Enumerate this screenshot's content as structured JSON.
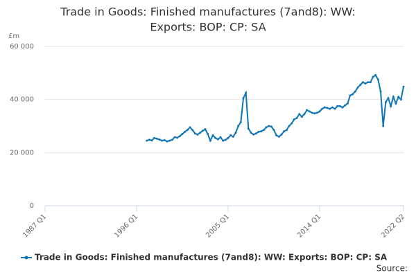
{
  "chart_data": {
    "type": "line",
    "title": [
      "Trade in Goods: Finished manufactures (7and8): WW:",
      "Exports: BOP: CP: SA"
    ],
    "y_label": "£m",
    "source": "Source:",
    "categories": [
      "1987 Q1",
      null,
      null,
      null,
      null,
      null,
      null,
      null,
      null,
      null,
      null,
      null,
      null,
      null,
      null,
      null,
      null,
      null,
      null,
      null,
      null,
      null,
      null,
      null,
      null,
      null,
      null,
      null,
      null,
      null,
      null,
      null,
      null,
      null,
      null,
      null,
      "1996 Q1",
      null,
      null,
      null,
      null,
      null,
      null,
      null,
      null,
      null,
      null,
      null,
      null,
      null,
      null,
      null,
      null,
      null,
      null,
      null,
      null,
      null,
      null,
      null,
      null,
      null,
      null,
      null,
      null,
      null,
      null,
      null,
      null,
      null,
      null,
      null,
      "2005 Q1",
      null,
      null,
      null,
      null,
      null,
      null,
      null,
      null,
      null,
      null,
      null,
      null,
      null,
      null,
      null,
      null,
      null,
      null,
      null,
      null,
      null,
      null,
      null,
      null,
      null,
      null,
      null,
      null,
      null,
      null,
      null,
      null,
      null,
      null,
      null,
      "2014 Q1",
      null,
      null,
      null,
      null,
      null,
      null,
      null,
      null,
      null,
      null,
      null,
      null,
      null,
      null,
      null,
      null,
      null,
      null,
      null,
      null,
      null,
      null,
      null,
      null,
      null,
      null,
      null,
      null,
      null,
      null,
      null,
      null,
      "2022 Q2"
    ],
    "series": [
      {
        "name": "Trade in Goods: Finished manufactures (7and8): WW: Exports: BOP: CP: SA",
        "color": "#0f75b5",
        "values": [
          null,
          null,
          null,
          null,
          null,
          null,
          null,
          null,
          null,
          null,
          null,
          null,
          null,
          null,
          null,
          null,
          null,
          null,
          null,
          null,
          null,
          null,
          null,
          null,
          null,
          null,
          null,
          null,
          null,
          null,
          null,
          null,
          null,
          null,
          null,
          null,
          null,
          null,
          null,
          null,
          24500,
          24800,
          24600,
          25500,
          25200,
          24900,
          24500,
          24700,
          24200,
          24500,
          24800,
          25800,
          25600,
          26200,
          27000,
          27800,
          28500,
          29500,
          28500,
          27200,
          26800,
          27500,
          28200,
          28800,
          27000,
          24500,
          26500,
          25500,
          25000,
          25800,
          24500,
          24800,
          25500,
          26500,
          26000,
          27500,
          30000,
          31500,
          40500,
          42500,
          29000,
          27500,
          26800,
          27200,
          27800,
          28000,
          28500,
          29500,
          30000,
          29800,
          28500,
          26500,
          26000,
          26800,
          28000,
          28500,
          30000,
          31000,
          32500,
          33000,
          34500,
          33500,
          34500,
          36000,
          35500,
          35000,
          34800,
          35000,
          35500,
          36500,
          37000,
          36800,
          36500,
          37000,
          36500,
          37500,
          37500,
          37000,
          37800,
          38500,
          41500,
          42000,
          43000,
          44500,
          45500,
          46500,
          46000,
          46500,
          46500,
          48500,
          49200,
          47500,
          43000,
          30000,
          39000,
          40500,
          37500,
          41000,
          38500,
          41000,
          40000,
          44800
        ]
      }
    ],
    "ylim": [
      0,
      60000
    ],
    "yticks": [
      {
        "value": 0,
        "label": "0"
      },
      {
        "value": 20000,
        "label": "20 000"
      },
      {
        "value": 40000,
        "label": "40 000"
      },
      {
        "value": 60000,
        "label": "60 000"
      }
    ],
    "grid": true
  }
}
